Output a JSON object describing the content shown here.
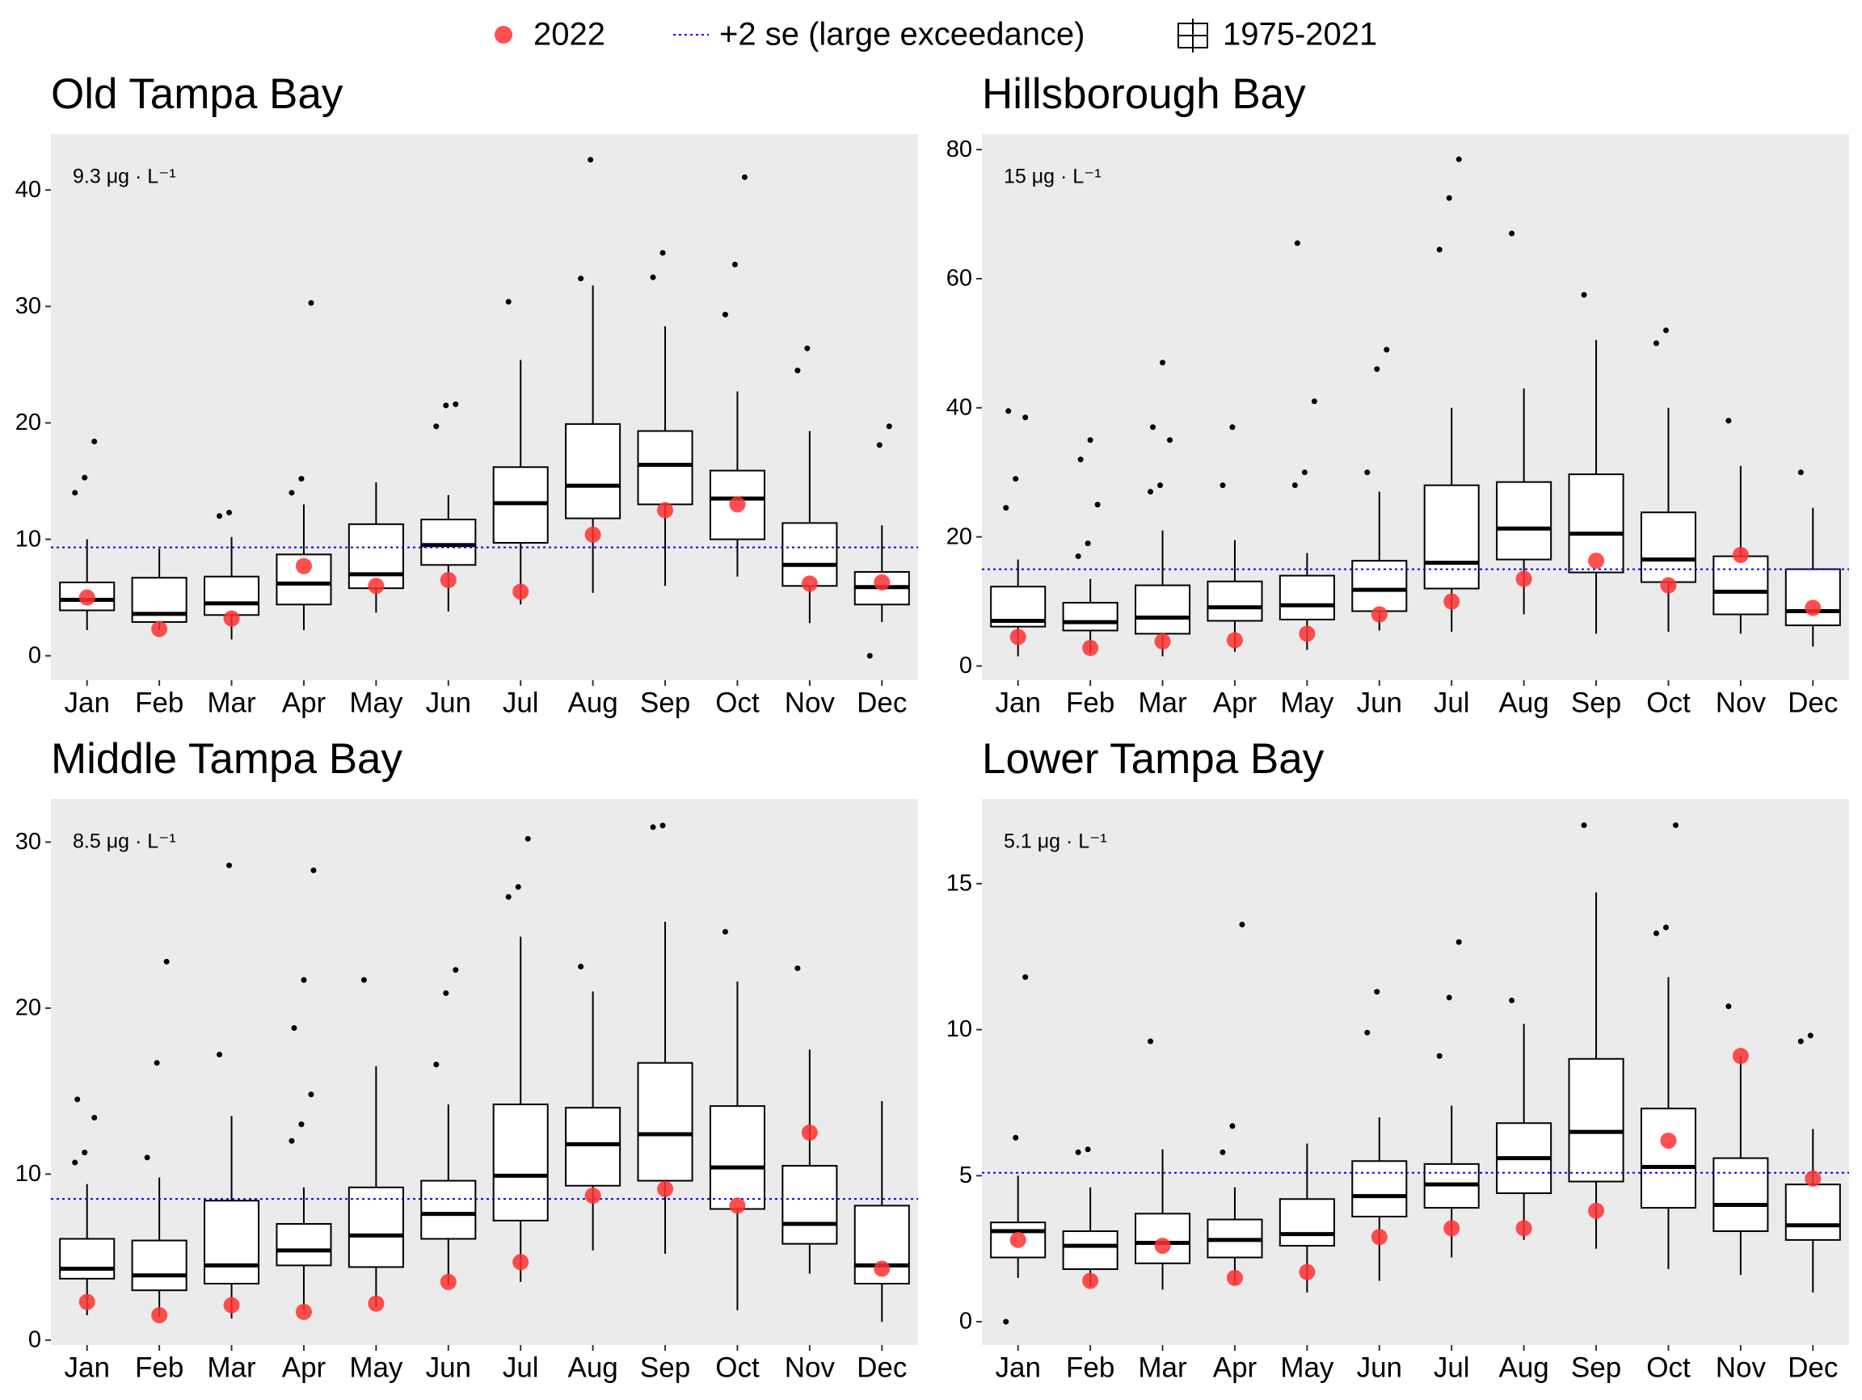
{
  "legend": {
    "items": [
      "2022",
      "+2 se (large exceedance)",
      "1975-2021"
    ]
  },
  "chart_data": [
    {
      "type": "box",
      "title": "Old Tampa Bay",
      "threshold": 9.3,
      "threshold_label": "9.3 μg · L⁻¹",
      "point_color": "#ff3030",
      "threshold_color": "#0000ff",
      "categories": [
        "Jan",
        "Feb",
        "Mar",
        "Apr",
        "May",
        "Jun",
        "Jul",
        "Aug",
        "Sep",
        "Oct",
        "Nov",
        "Dec"
      ],
      "ylim": [
        -2.1,
        44.8
      ],
      "yticks": [
        0,
        10,
        20,
        30,
        40
      ],
      "values_2022": [
        5.0,
        2.3,
        3.2,
        7.7,
        6.0,
        6.5,
        5.5,
        10.4,
        12.5,
        13.0,
        6.2,
        6.3
      ],
      "boxes": [
        {
          "low": 2.2,
          "q1": 3.9,
          "median": 4.8,
          "q3": 6.3,
          "high": 10.0,
          "outliers": [
            14.0,
            15.3,
            18.4
          ]
        },
        {
          "low": 2.2,
          "q1": 2.9,
          "median": 3.6,
          "q3": 6.7,
          "high": 9.2,
          "outliers": []
        },
        {
          "low": 1.4,
          "q1": 3.5,
          "median": 4.5,
          "q3": 6.8,
          "high": 10.2,
          "outliers": [
            12.0,
            12.3
          ]
        },
        {
          "low": 2.2,
          "q1": 4.4,
          "median": 6.2,
          "q3": 8.7,
          "high": 13.0,
          "outliers": [
            14.0,
            15.2,
            30.3
          ]
        },
        {
          "low": 3.7,
          "q1": 5.8,
          "median": 7.0,
          "q3": 11.3,
          "high": 14.9,
          "outliers": []
        },
        {
          "low": 3.8,
          "q1": 7.8,
          "median": 9.5,
          "q3": 11.7,
          "high": 13.8,
          "outliers": [
            19.7,
            21.5,
            21.6
          ]
        },
        {
          "low": 4.4,
          "q1": 9.7,
          "median": 13.1,
          "q3": 16.2,
          "high": 25.4,
          "outliers": [
            30.4
          ]
        },
        {
          "low": 5.4,
          "q1": 11.8,
          "median": 14.6,
          "q3": 19.9,
          "high": 31.8,
          "outliers": [
            32.4,
            42.6
          ]
        },
        {
          "low": 6.0,
          "q1": 13.0,
          "median": 16.4,
          "q3": 19.3,
          "high": 28.3,
          "outliers": [
            32.5,
            34.6
          ]
        },
        {
          "low": 6.8,
          "q1": 10.0,
          "median": 13.5,
          "q3": 15.9,
          "high": 22.7,
          "outliers": [
            29.3,
            33.6,
            41.1
          ]
        },
        {
          "low": 2.8,
          "q1": 6.0,
          "median": 7.8,
          "q3": 11.4,
          "high": 19.3,
          "outliers": [
            24.5,
            26.4
          ]
        },
        {
          "low": 2.9,
          "q1": 4.4,
          "median": 5.9,
          "q3": 7.2,
          "high": 11.2,
          "outliers": [
            0,
            18.1,
            19.7
          ]
        }
      ]
    },
    {
      "type": "box",
      "title": "Hillsborough Bay",
      "threshold": 15,
      "threshold_label": "15 μg · L⁻¹",
      "point_color": "#ff3030",
      "threshold_color": "#0000ff",
      "categories": [
        "Jan",
        "Feb",
        "Mar",
        "Apr",
        "May",
        "Jun",
        "Jul",
        "Aug",
        "Sep",
        "Oct",
        "Nov",
        "Dec"
      ],
      "ylim": [
        -2.2,
        82.4
      ],
      "yticks": [
        0,
        20,
        40,
        60,
        80
      ],
      "values_2022": [
        4.5,
        2.8,
        3.8,
        4.0,
        5.0,
        8.0,
        10.0,
        13.5,
        16.3,
        12.5,
        17.2,
        9.0
      ],
      "boxes": [
        {
          "low": 1.5,
          "q1": 6.1,
          "median": 7.0,
          "q3": 12.3,
          "high": 16.5,
          "outliers": [
            24.5,
            29,
            38.5,
            39.5
          ]
        },
        {
          "low": 2.0,
          "q1": 5.5,
          "median": 6.8,
          "q3": 9.8,
          "high": 13.5,
          "outliers": [
            17,
            19,
            25,
            32,
            35
          ]
        },
        {
          "low": 1.5,
          "q1": 5.0,
          "median": 7.5,
          "q3": 12.5,
          "high": 21,
          "outliers": [
            27,
            28,
            35,
            37,
            47
          ]
        },
        {
          "low": 2.2,
          "q1": 7.0,
          "median": 9.1,
          "q3": 13.1,
          "high": 19.5,
          "outliers": [
            28,
            37
          ]
        },
        {
          "low": 2.5,
          "q1": 7.2,
          "median": 9.4,
          "q3": 14.0,
          "high": 17.5,
          "outliers": [
            28,
            30,
            41,
            65.5
          ]
        },
        {
          "low": 5.5,
          "q1": 8.5,
          "median": 11.8,
          "q3": 16.3,
          "high": 27,
          "outliers": [
            30,
            46,
            49
          ]
        },
        {
          "low": 5.3,
          "q1": 12,
          "median": 16,
          "q3": 28,
          "high": 40,
          "outliers": [
            64.5,
            72.5,
            78.5
          ]
        },
        {
          "low": 8.0,
          "q1": 16.5,
          "median": 21.3,
          "q3": 28.5,
          "high": 43,
          "outliers": [
            67
          ]
        },
        {
          "low": 5.0,
          "q1": 14.5,
          "median": 20.5,
          "q3": 29.7,
          "high": 50.5,
          "outliers": [
            57.5
          ]
        },
        {
          "low": 5.3,
          "q1": 13,
          "median": 16.5,
          "q3": 23.8,
          "high": 40,
          "outliers": [
            50,
            52
          ]
        },
        {
          "low": 5.0,
          "q1": 8,
          "median": 11.5,
          "q3": 17,
          "high": 31,
          "outliers": [
            38
          ]
        },
        {
          "low": 3.0,
          "q1": 6.3,
          "median": 8.5,
          "q3": 15,
          "high": 24.5,
          "outliers": [
            30
          ]
        }
      ]
    },
    {
      "type": "box",
      "title": "Middle Tampa Bay",
      "threshold": 8.5,
      "threshold_label": "8.5 μg · L⁻¹",
      "point_color": "#ff3030",
      "threshold_color": "#0000ff",
      "categories": [
        "Jan",
        "Feb",
        "Mar",
        "Apr",
        "May",
        "Jun",
        "Jul",
        "Aug",
        "Sep",
        "Oct",
        "Nov",
        "Dec"
      ],
      "ylim": [
        -0.3,
        32.6
      ],
      "yticks": [
        0,
        10,
        20,
        30
      ],
      "values_2022": [
        2.3,
        1.5,
        2.1,
        1.7,
        2.2,
        3.5,
        4.7,
        8.7,
        9.1,
        8.1,
        12.5,
        4.3
      ],
      "boxes": [
        {
          "low": 1.5,
          "q1": 3.7,
          "median": 4.3,
          "q3": 6.1,
          "high": 9.4,
          "outliers": [
            10.7,
            11.3,
            13.4,
            14.5
          ]
        },
        {
          "low": 1.4,
          "q1": 3.0,
          "median": 3.9,
          "q3": 6.0,
          "high": 9.8,
          "outliers": [
            11,
            16.7,
            22.8
          ]
        },
        {
          "low": 1.3,
          "q1": 3.4,
          "median": 4.5,
          "q3": 8.4,
          "high": 13.5,
          "outliers": [
            17.2,
            28.6
          ]
        },
        {
          "low": 1.8,
          "q1": 4.5,
          "median": 5.4,
          "q3": 7.0,
          "high": 9.2,
          "outliers": [
            12,
            13,
            14.8,
            18.8,
            21.7,
            28.3
          ]
        },
        {
          "low": 2.0,
          "q1": 4.4,
          "median": 6.3,
          "q3": 9.2,
          "high": 16.5,
          "outliers": [
            21.7
          ]
        },
        {
          "low": 3.3,
          "q1": 6.1,
          "median": 7.6,
          "q3": 9.6,
          "high": 14.2,
          "outliers": [
            16.6,
            20.9,
            22.3
          ]
        },
        {
          "low": 3.5,
          "q1": 7.2,
          "median": 9.9,
          "q3": 14.2,
          "high": 24.3,
          "outliers": [
            26.7,
            27.3,
            30.2
          ]
        },
        {
          "low": 5.4,
          "q1": 9.3,
          "median": 11.8,
          "q3": 14.0,
          "high": 21.0,
          "outliers": [
            22.5
          ]
        },
        {
          "low": 5.2,
          "q1": 9.6,
          "median": 12.4,
          "q3": 16.7,
          "high": 25.2,
          "outliers": [
            30.9,
            31
          ]
        },
        {
          "low": 1.8,
          "q1": 7.9,
          "median": 10.4,
          "q3": 14.1,
          "high": 21.6,
          "outliers": [
            24.6
          ]
        },
        {
          "low": 4.0,
          "q1": 5.8,
          "median": 7.0,
          "q3": 10.5,
          "high": 17.5,
          "outliers": [
            22.4
          ]
        },
        {
          "low": 1.1,
          "q1": 3.4,
          "median": 4.5,
          "q3": 8.1,
          "high": 14.4,
          "outliers": []
        }
      ]
    },
    {
      "type": "box",
      "title": "Lower Tampa Bay",
      "threshold": 5.1,
      "threshold_label": "5.1 μg · L⁻¹",
      "point_color": "#ff3030",
      "threshold_color": "#0000ff",
      "categories": [
        "Jan",
        "Feb",
        "Mar",
        "Apr",
        "May",
        "Jun",
        "Jul",
        "Aug",
        "Sep",
        "Oct",
        "Nov",
        "Dec"
      ],
      "ylim": [
        -0.8,
        17.9
      ],
      "yticks": [
        0,
        5,
        10,
        15
      ],
      "values_2022": [
        2.8,
        1.4,
        2.6,
        1.5,
        1.7,
        2.9,
        3.2,
        3.2,
        3.8,
        6.2,
        9.1,
        4.9
      ],
      "boxes": [
        {
          "low": 1.5,
          "q1": 2.2,
          "median": 3.1,
          "q3": 3.4,
          "high": 5.0,
          "outliers": [
            0,
            6.3,
            11.8
          ]
        },
        {
          "low": 1.2,
          "q1": 1.8,
          "median": 2.6,
          "q3": 3.1,
          "high": 4.6,
          "outliers": [
            5.8,
            5.9
          ]
        },
        {
          "low": 1.1,
          "q1": 2.0,
          "median": 2.7,
          "q3": 3.7,
          "high": 5.9,
          "outliers": [
            9.6
          ]
        },
        {
          "low": 1.3,
          "q1": 2.2,
          "median": 2.8,
          "q3": 3.5,
          "high": 4.6,
          "outliers": [
            5.8,
            6.7,
            13.6
          ]
        },
        {
          "low": 1.0,
          "q1": 2.6,
          "median": 3.0,
          "q3": 4.2,
          "high": 6.1,
          "outliers": []
        },
        {
          "low": 1.4,
          "q1": 3.6,
          "median": 4.3,
          "q3": 5.5,
          "high": 7.0,
          "outliers": [
            9.9,
            11.3
          ]
        },
        {
          "low": 2.2,
          "q1": 3.9,
          "median": 4.7,
          "q3": 5.4,
          "high": 7.4,
          "outliers": [
            9.1,
            11.1,
            13
          ]
        },
        {
          "low": 2.8,
          "q1": 4.4,
          "median": 5.6,
          "q3": 6.8,
          "high": 10.2,
          "outliers": [
            11.0
          ]
        },
        {
          "low": 2.5,
          "q1": 4.8,
          "median": 6.5,
          "q3": 9.0,
          "high": 14.7,
          "outliers": [
            17.0
          ]
        },
        {
          "low": 1.8,
          "q1": 3.9,
          "median": 5.3,
          "q3": 7.3,
          "high": 11.8,
          "outliers": [
            13.3,
            13.5,
            17.0
          ]
        },
        {
          "low": 1.6,
          "q1": 3.1,
          "median": 4.0,
          "q3": 5.6,
          "high": 9.1,
          "outliers": [
            10.8
          ]
        },
        {
          "low": 1.0,
          "q1": 2.8,
          "median": 3.3,
          "q3": 4.7,
          "high": 6.6,
          "outliers": [
            9.6,
            9.8
          ]
        }
      ]
    }
  ]
}
